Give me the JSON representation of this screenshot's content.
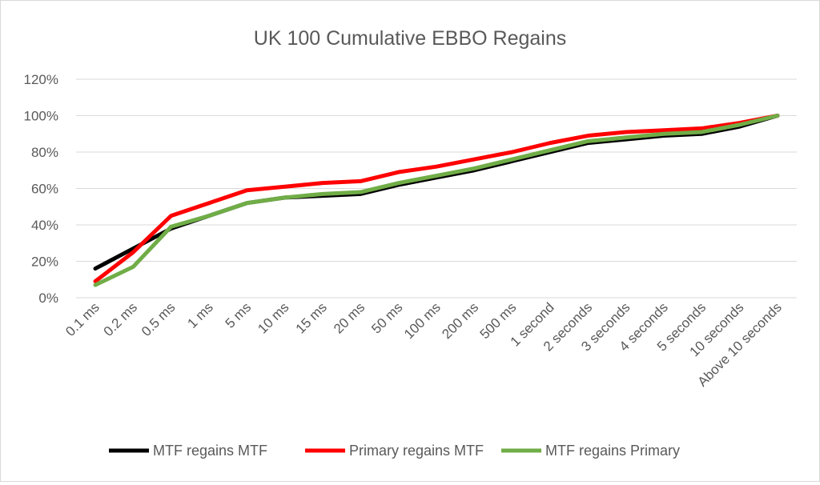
{
  "chart_data": {
    "type": "line",
    "title": "UK 100 Cumulative EBBO Regains",
    "xlabel": "",
    "ylabel": "",
    "ylim": [
      0,
      120
    ],
    "yticks": [
      "0%",
      "20%",
      "40%",
      "60%",
      "80%",
      "100%",
      "120%"
    ],
    "ytick_values": [
      0,
      20,
      40,
      60,
      80,
      100,
      120
    ],
    "grid": true,
    "legend_position": "bottom",
    "categories": [
      "0.1 ms",
      "0.2 ms",
      "0.5 ms",
      "1 ms",
      "5 ms",
      "10 ms",
      "15 ms",
      "20 ms",
      "50 ms",
      "100 ms",
      "200 ms",
      "500 ms",
      "1 second",
      "2 seconds",
      "3 seconds",
      "4 seconds",
      "5 seconds",
      "10 seconds",
      "Above 10 seconds"
    ],
    "series": [
      {
        "name": "MTF regains MTF",
        "color": "#000000",
        "values": [
          16,
          27,
          38,
          45,
          52,
          55,
          56,
          57,
          62,
          66,
          70,
          75,
          80,
          85,
          87,
          89,
          90,
          94,
          100
        ]
      },
      {
        "name": "Primary regains MTF",
        "color": "#ff0000",
        "values": [
          9,
          25,
          45,
          52,
          59,
          61,
          63,
          64,
          69,
          72,
          76,
          80,
          85,
          89,
          91,
          92,
          93,
          96,
          100
        ]
      },
      {
        "name": "MTF regains Primary",
        "color": "#70ad47",
        "values": [
          7,
          17,
          39,
          45,
          52,
          55,
          57,
          58,
          63,
          67,
          71,
          76,
          81,
          86,
          88,
          90,
          91,
          95,
          100
        ]
      }
    ]
  }
}
